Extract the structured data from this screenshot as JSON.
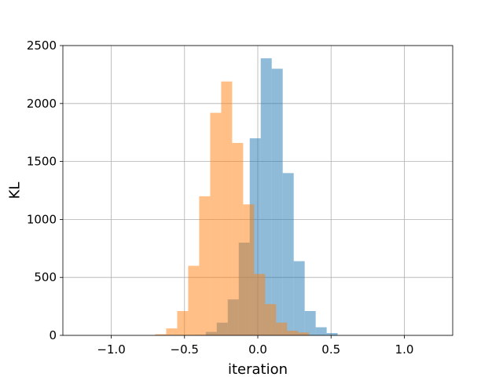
{
  "chart_data": {
    "type": "bar",
    "title": "",
    "xlabel": "iteration",
    "ylabel": "KL",
    "xlim": [
      -1.33,
      1.33
    ],
    "ylim": [
      0,
      2500
    ],
    "xticks": [
      -1.0,
      -0.5,
      0.0,
      0.5,
      1.0
    ],
    "xtick_labels": [
      "−1.0",
      "−0.5",
      "0.0",
      "0.5",
      "1.0"
    ],
    "yticks": [
      0,
      500,
      1000,
      1500,
      2000,
      2500
    ],
    "ytick_labels": [
      "0",
      "500",
      "1000",
      "1500",
      "2000",
      "2500"
    ],
    "grid": true,
    "legend": "none",
    "series": [
      {
        "color": "#1f77b4",
        "opacity": 0.5,
        "bins": [
          [
            -0.43,
            -0.355,
            4
          ],
          [
            -0.355,
            -0.28,
            30
          ],
          [
            -0.28,
            -0.205,
            110
          ],
          [
            -0.205,
            -0.13,
            310
          ],
          [
            -0.13,
            -0.055,
            800
          ],
          [
            -0.055,
            0.02,
            1700
          ],
          [
            0.02,
            0.095,
            2390
          ],
          [
            0.095,
            0.17,
            2300
          ],
          [
            0.17,
            0.245,
            1400
          ],
          [
            0.245,
            0.32,
            640
          ],
          [
            0.32,
            0.395,
            210
          ],
          [
            0.395,
            0.47,
            70
          ],
          [
            0.47,
            0.545,
            20
          ]
        ]
      },
      {
        "color": "#ff7f0e",
        "opacity": 0.5,
        "bins": [
          [
            -0.7,
            -0.625,
            10
          ],
          [
            -0.625,
            -0.55,
            60
          ],
          [
            -0.55,
            -0.475,
            210
          ],
          [
            -0.475,
            -0.4,
            600
          ],
          [
            -0.4,
            -0.325,
            1200
          ],
          [
            -0.325,
            -0.25,
            1920
          ],
          [
            -0.25,
            -0.175,
            2190
          ],
          [
            -0.175,
            -0.1,
            1660
          ],
          [
            -0.1,
            -0.025,
            1130
          ],
          [
            -0.025,
            0.05,
            530
          ],
          [
            0.05,
            0.125,
            270
          ],
          [
            0.125,
            0.2,
            110
          ],
          [
            0.2,
            0.275,
            40
          ],
          [
            0.275,
            0.35,
            25
          ]
        ]
      }
    ]
  }
}
